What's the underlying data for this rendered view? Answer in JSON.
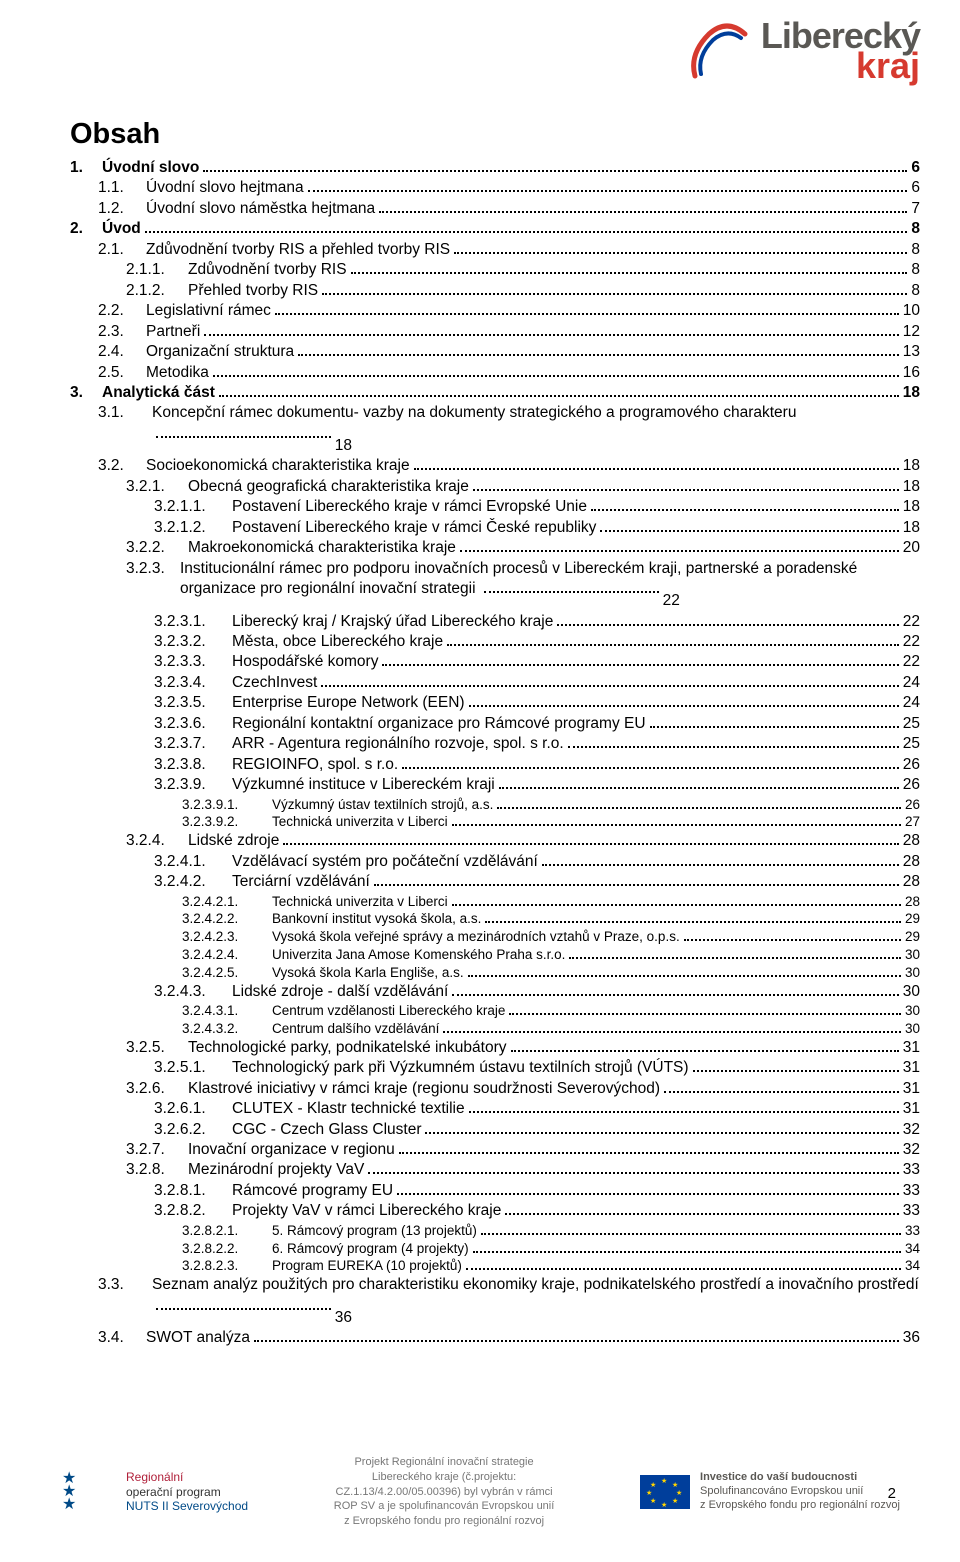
{
  "header": {
    "brand_line1": "Liberecký",
    "brand_line2": "kraj"
  },
  "title": "Obsah",
  "toc": [
    {
      "n": "1.",
      "t": "Úvodní slovo",
      "p": "6",
      "i": 0,
      "b": true
    },
    {
      "n": "1.1.",
      "t": "Úvodní slovo hejtmana",
      "p": "6",
      "i": 1
    },
    {
      "n": "1.2.",
      "t": "Úvodní slovo náměstka hejtmana",
      "p": "7",
      "i": 1
    },
    {
      "n": "2.",
      "t": "Úvod",
      "p": "8",
      "i": 0,
      "b": true
    },
    {
      "n": "2.1.",
      "t": "Zdůvodnění tvorby RIS a přehled tvorby RIS",
      "p": "8",
      "i": 1
    },
    {
      "n": "2.1.1.",
      "t": "Zdůvodnění tvorby RIS",
      "p": "8",
      "i": 2
    },
    {
      "n": "2.1.2.",
      "t": "Přehled tvorby RIS",
      "p": "8",
      "i": 2
    },
    {
      "n": "2.2.",
      "t": "Legislativní rámec",
      "p": "10",
      "i": 1
    },
    {
      "n": "2.3.",
      "t": "Partneři",
      "p": "12",
      "i": 1
    },
    {
      "n": "2.4.",
      "t": "Organizační struktura",
      "p": "13",
      "i": 1
    },
    {
      "n": "2.5.",
      "t": "Metodika",
      "p": "16",
      "i": 1
    },
    {
      "n": "3.",
      "t": "Analytická část",
      "p": "18",
      "i": 0,
      "b": true
    },
    {
      "n": "3.1.",
      "t": "Koncepční rámec dokumentu- vazby na dokumenty strategického a programového charakteru",
      "p": "18",
      "i": 1,
      "wrap": true
    },
    {
      "n": "3.2.",
      "t": "Socioekonomická charakteristika kraje",
      "p": "18",
      "i": 1
    },
    {
      "n": "3.2.1.",
      "t": "Obecná geografická charakteristika kraje",
      "p": "18",
      "i": 2
    },
    {
      "n": "3.2.1.1.",
      "t": "Postavení Libereckého kraje v rámci Evropské Unie",
      "p": "18",
      "i": 3
    },
    {
      "n": "3.2.1.2.",
      "t": "Postavení Libereckého kraje v rámci České republiky",
      "p": "18",
      "i": 3
    },
    {
      "n": "3.2.2.",
      "t": "Makroekonomická charakteristika kraje",
      "p": "20",
      "i": 2
    },
    {
      "n": "3.2.3.",
      "t": "Institucionální rámec pro podporu inovačních procesů v Libereckém kraji, partnerské a poradenské organizace pro regionální inovační strategii",
      "p": "22",
      "i": 2,
      "wrap": true
    },
    {
      "n": "3.2.3.1.",
      "t": "Liberecký kraj / Krajský úřad Libereckého kraje",
      "p": "22",
      "i": 3
    },
    {
      "n": "3.2.3.2.",
      "t": "Města, obce Libereckého kraje",
      "p": "22",
      "i": 3
    },
    {
      "n": "3.2.3.3.",
      "t": "Hospodářské komory",
      "p": "22",
      "i": 3
    },
    {
      "n": "3.2.3.4.",
      "t": "CzechInvest",
      "p": "24",
      "i": 3
    },
    {
      "n": "3.2.3.5.",
      "t": "Enterprise Europe Network (EEN)",
      "p": "24",
      "i": 3
    },
    {
      "n": "3.2.3.6.",
      "t": "Regionální kontaktní organizace pro Rámcové programy EU",
      "p": "25",
      "i": 3
    },
    {
      "n": "3.2.3.7.",
      "t": "ARR - Agentura regionálního rozvoje, spol. s r.o.",
      "p": "25",
      "i": 3
    },
    {
      "n": "3.2.3.8.",
      "t": "REGIOINFO, spol. s r.o.",
      "p": "26",
      "i": 3
    },
    {
      "n": "3.2.3.9.",
      "t": "Výzkumné instituce v Libereckém kraji",
      "p": "26",
      "i": 3
    },
    {
      "n": "3.2.3.9.1.",
      "t": "Výzkumný ústav textilních strojů, a.s.",
      "p": "26",
      "i": 4,
      "sm": true
    },
    {
      "n": "3.2.3.9.2.",
      "t": "Technická univerzita v Liberci",
      "p": "27",
      "i": 4,
      "sm": true
    },
    {
      "n": "3.2.4.",
      "t": "Lidské zdroje",
      "p": "28",
      "i": 2
    },
    {
      "n": "3.2.4.1.",
      "t": "Vzdělávací systém pro počáteční vzdělávání",
      "p": "28",
      "i": 3
    },
    {
      "n": "3.2.4.2.",
      "t": "Terciární vzdělávání",
      "p": "28",
      "i": 3
    },
    {
      "n": "3.2.4.2.1.",
      "t": "Technická univerzita v Liberci",
      "p": "28",
      "i": 4,
      "sm": true
    },
    {
      "n": "3.2.4.2.2.",
      "t": "Bankovní institut vysoká škola, a.s.",
      "p": "29",
      "i": 4,
      "sm": true
    },
    {
      "n": "3.2.4.2.3.",
      "t": "Vysoká škola veřejné správy a mezinárodních vztahů v Praze, o.p.s.",
      "p": "29",
      "i": 4,
      "sm": true
    },
    {
      "n": "3.2.4.2.4.",
      "t": "Univerzita Jana Amose Komenského Praha s.r.o.",
      "p": "30",
      "i": 4,
      "sm": true
    },
    {
      "n": "3.2.4.2.5.",
      "t": "Vysoká škola Karla Engliše, a.s.",
      "p": "30",
      "i": 4,
      "sm": true
    },
    {
      "n": "3.2.4.3.",
      "t": "Lidské zdroje - další vzdělávání",
      "p": "30",
      "i": 3
    },
    {
      "n": "3.2.4.3.1.",
      "t": "Centrum vzdělanosti Libereckého kraje",
      "p": "30",
      "i": 4,
      "sm": true
    },
    {
      "n": "3.2.4.3.2.",
      "t": "Centrum dalšího vzdělávání",
      "p": "30",
      "i": 4,
      "sm": true
    },
    {
      "n": "3.2.5.",
      "t": "Technologické parky, podnikatelské inkubátory",
      "p": "31",
      "i": 2
    },
    {
      "n": "3.2.5.1.",
      "t": "Technologický park při Výzkumném ústavu textilních strojů (VÚTS)",
      "p": "31",
      "i": 3
    },
    {
      "n": "3.2.6.",
      "t": "Klastrové iniciativy v rámci kraje (regionu soudržnosti Severovýchod)",
      "p": "31",
      "i": 2
    },
    {
      "n": "3.2.6.1.",
      "t": "CLUTEX - Klastr technické textilie",
      "p": "31",
      "i": 3
    },
    {
      "n": "3.2.6.2.",
      "t": "CGC - Czech Glass Cluster",
      "p": "32",
      "i": 3
    },
    {
      "n": "3.2.7.",
      "t": "Inovační organizace v regionu",
      "p": "32",
      "i": 2
    },
    {
      "n": "3.2.8.",
      "t": "Mezinárodní projekty VaV",
      "p": "33",
      "i": 2
    },
    {
      "n": "3.2.8.1.",
      "t": "Rámcové programy  EU",
      "p": "33",
      "i": 3
    },
    {
      "n": "3.2.8.2.",
      "t": "Projekty VaV v rámci Libereckého kraje",
      "p": "33",
      "i": 3
    },
    {
      "n": "3.2.8.2.1.",
      "t": "5. Rámcový program (13 projektů)",
      "p": "33",
      "i": 4,
      "sm": true
    },
    {
      "n": "3.2.8.2.2.",
      "t": "6. Rámcový program (4 projekty)",
      "p": "34",
      "i": 4,
      "sm": true
    },
    {
      "n": "3.2.8.2.3.",
      "t": "Program EUREKA (10 projektů)",
      "p": "34",
      "i": 4,
      "sm": true
    },
    {
      "n": "3.3.",
      "t": "Seznam analýz použitých pro charakteristiku ekonomiky kraje, podnikatelského prostředí a inovačního prostředí",
      "p": "36",
      "i": 1,
      "wrap": true
    },
    {
      "n": "3.4.",
      "t": "SWOT analýza",
      "p": "36",
      "i": 1
    }
  ],
  "footer": {
    "left_t1": "Regionální",
    "left_t2": "operační program",
    "left_t3": "NUTS II Severovýchod",
    "center_l1": "Projekt Regionální inovační strategie",
    "center_l2": "Libereckého kraje (č.projektu:",
    "center_l3": "CZ.1.13/4.2.00/05.00396) byl vybrán v rámci",
    "center_l4": "ROP SV a je spolufinancován Evropskou unií",
    "center_l5": "z Evropského fondu pro regionální rozvoj",
    "right_l1": "Investice do vaší budoucnosti",
    "right_l2": "Spolufinancováno Evropskou unií",
    "right_l3": "z Evropského fondu pro regionální rozvoj",
    "page_number": "2"
  }
}
